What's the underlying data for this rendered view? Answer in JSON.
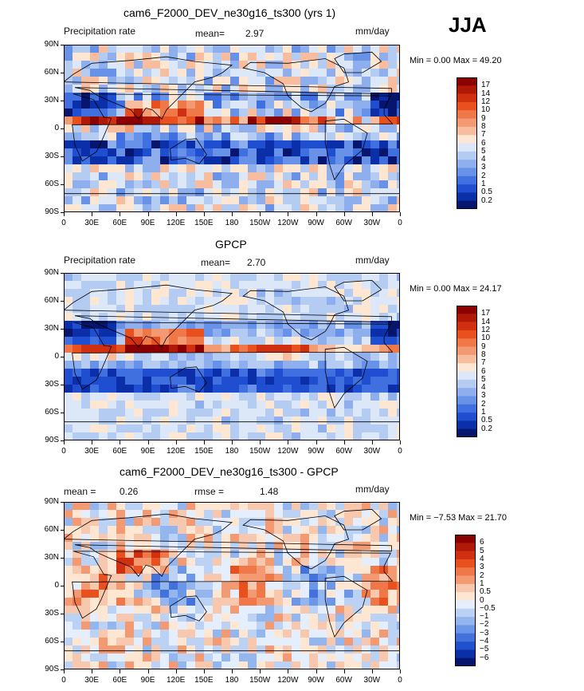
{
  "season": "JJA",
  "panels": [
    {
      "title": "cam6_F2000_DEV_ne30g16_ts300 (yrs 1)",
      "left_label": "Precipitation rate",
      "mid_label": "mean=",
      "mid_value": "2.97",
      "rmse_label": "",
      "rmse_value": "",
      "units": "mm/day",
      "minmax": "Min =    0.00 Max =   49.20",
      "colorbar_labels": [
        "17",
        "14",
        "12",
        "10",
        "9",
        "8",
        "7",
        "6",
        "5",
        "4",
        "3",
        "2",
        "1",
        "0.5",
        "0.2"
      ],
      "colors": [
        "#8b0000",
        "#b01808",
        "#d03010",
        "#e8501e",
        "#f07848",
        "#f49a72",
        "#f8bc9e",
        "#fde6d2",
        "#dce8f8",
        "#b4cbf2",
        "#8eaeee",
        "#6892e8",
        "#4070e0",
        "#1f4fd0",
        "#0a2fa8",
        "#06166e"
      ]
    },
    {
      "title": "GPCP",
      "left_label": "Precipitation rate",
      "mid_label": "mean=",
      "mid_value": "2.70",
      "rmse_label": "",
      "rmse_value": "",
      "units": "mm/day",
      "minmax": "Min =    0.00 Max =   24.17",
      "colorbar_labels": [
        "17",
        "14",
        "12",
        "10",
        "9",
        "8",
        "7",
        "6",
        "5",
        "4",
        "3",
        "2",
        "1",
        "0.5",
        "0.2"
      ],
      "colors": [
        "#8b0000",
        "#b01808",
        "#d03010",
        "#e8501e",
        "#f07848",
        "#f49a72",
        "#f8bc9e",
        "#fde6d2",
        "#dce8f8",
        "#b4cbf2",
        "#8eaeee",
        "#6892e8",
        "#4070e0",
        "#1f4fd0",
        "#0a2fa8",
        "#06166e"
      ]
    },
    {
      "title": "cam6_F2000_DEV_ne30g16_ts300 - GPCP",
      "left_label": "mean =",
      "mid_label": "0.26",
      "mid_value": "",
      "rmse_label": "rmse =",
      "rmse_value": "1.48",
      "units": "mm/day",
      "minmax": "Min =   −7.53 Max =   21.70",
      "colorbar_labels": [
        "6",
        "5",
        "4",
        "3",
        "2",
        "1",
        "0.5",
        "0",
        "−0.5",
        "−1",
        "−2",
        "−3",
        "−4",
        "−5",
        "−6"
      ],
      "colors": [
        "#8b0000",
        "#b01808",
        "#d03010",
        "#e8501e",
        "#f07848",
        "#f49a72",
        "#f8c8ae",
        "#fde6d2",
        "#e4eefc",
        "#bcd2f4",
        "#94b6ee",
        "#6c96e8",
        "#4472dc",
        "#2050cc",
        "#0a2fa8",
        "#06166e"
      ]
    }
  ],
  "lat_labels": [
    "90N",
    "60N",
    "30N",
    "0",
    "30S",
    "60S",
    "90S"
  ],
  "lon_labels": [
    "0",
    "30E",
    "60E",
    "90E",
    "120E",
    "150E",
    "180",
    "150W",
    "120W",
    "90W",
    "60W",
    "30W",
    "0"
  ]
}
